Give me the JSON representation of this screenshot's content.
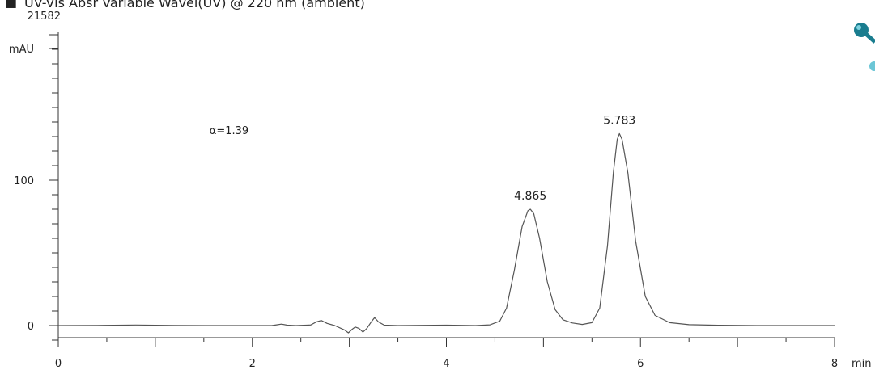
{
  "chart_data": {
    "type": "line",
    "title": "UV-Vis Absr Variable Wavel(UV) @ 220 nm (ambient)",
    "title_marker": "■",
    "xlabel": "min",
    "ylabel": "mAU",
    "xlim": [
      0,
      8
    ],
    "ylim": [
      -5,
      200
    ],
    "x_ticks": [
      "0",
      "2",
      "4",
      "6",
      "8"
    ],
    "y_ticks": [
      "0",
      "100"
    ],
    "y_top_label": "21582",
    "grid": false,
    "annotation": "α=1.39",
    "peaks": [
      {
        "label": "4.865",
        "x": 4.865,
        "y": 80
      },
      {
        "label": "5.783",
        "x": 5.783,
        "y": 132
      }
    ],
    "series": [
      {
        "color": "#555555",
        "x": [
          0,
          0.4,
          0.8,
          1.2,
          1.6,
          2.0,
          2.2,
          2.25,
          2.3,
          2.36,
          2.45,
          2.6,
          2.66,
          2.71,
          2.77,
          2.85,
          2.95,
          2.99,
          3.03,
          3.06,
          3.1,
          3.14,
          3.18,
          3.22,
          3.26,
          3.3,
          3.36,
          3.5,
          4.0,
          4.3,
          4.45,
          4.55,
          4.62,
          4.7,
          4.78,
          4.84,
          4.865,
          4.9,
          4.96,
          5.04,
          5.12,
          5.2,
          5.3,
          5.4,
          5.5,
          5.58,
          5.66,
          5.72,
          5.76,
          5.783,
          5.81,
          5.87,
          5.95,
          6.05,
          6.15,
          6.3,
          6.5,
          6.8,
          7.2,
          8.0
        ],
        "y": [
          0,
          0.1,
          0.4,
          0.1,
          0,
          0,
          0,
          0.5,
          1.0,
          0.3,
          0,
          0.4,
          2.5,
          3.5,
          1.5,
          0,
          -3.0,
          -5.0,
          -2.5,
          -1.0,
          -2.0,
          -4.5,
          -2.0,
          2.0,
          5.5,
          2.5,
          0.3,
          0,
          0.3,
          0,
          0.5,
          3.0,
          12,
          38,
          68,
          79,
          80,
          77,
          60,
          30,
          11,
          4,
          1.8,
          0.8,
          2.0,
          12,
          55,
          105,
          128,
          132,
          128,
          105,
          58,
          20,
          7,
          2,
          0.6,
          0.2,
          0,
          0
        ]
      }
    ]
  }
}
